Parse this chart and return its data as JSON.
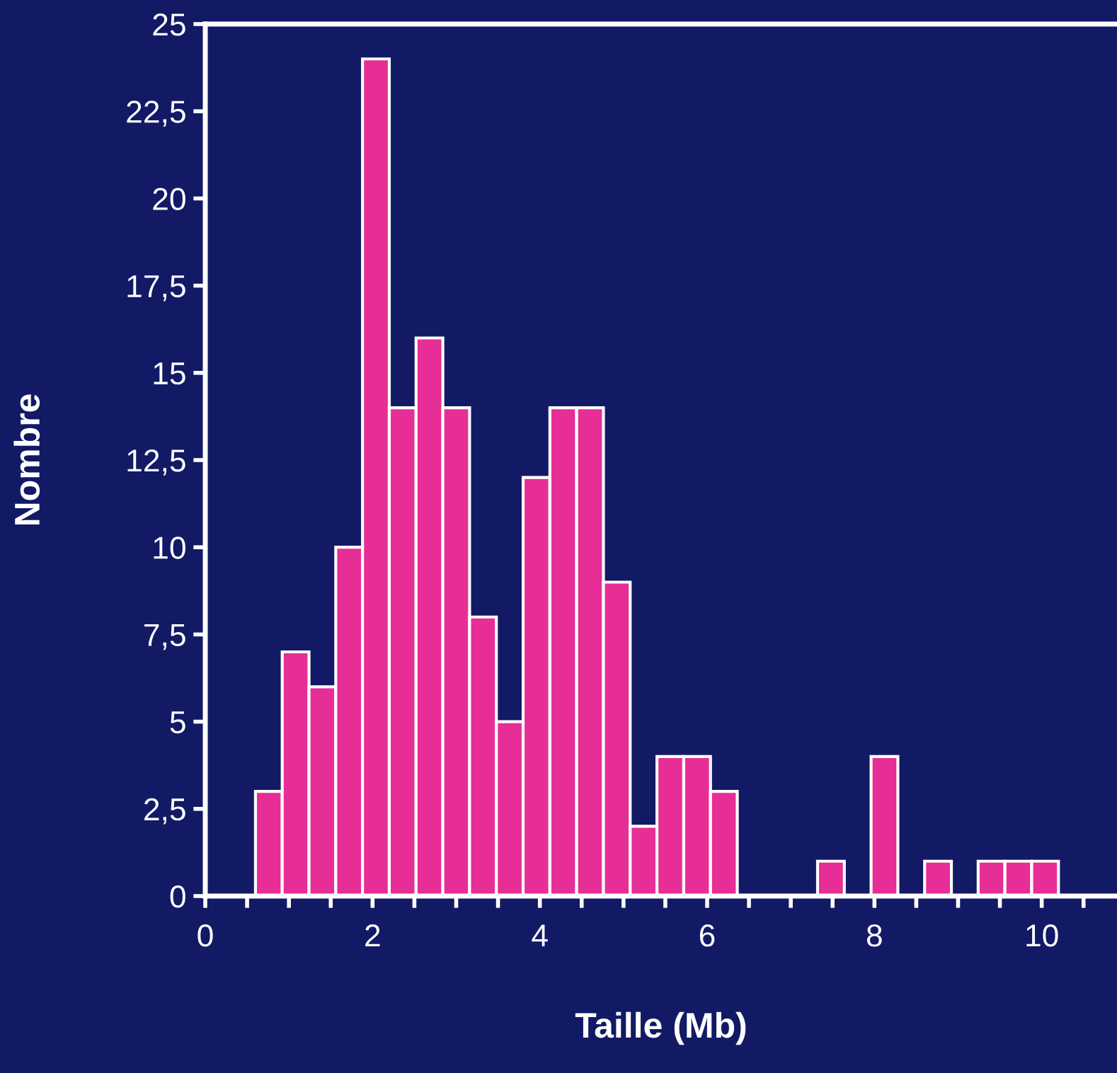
{
  "chart_data": {
    "type": "histogram",
    "xlabel": "Taille (Mb)",
    "ylabel": "Nombre",
    "bins": [
      0.6,
      0.92,
      1.24,
      1.56,
      1.88,
      2.2,
      2.52,
      2.84,
      3.16,
      3.48,
      3.8,
      4.12,
      4.44,
      4.76,
      5.08,
      5.4,
      5.72,
      6.04,
      6.36,
      6.68,
      7.0,
      7.32,
      7.64,
      7.96,
      8.28,
      8.6,
      8.92,
      9.24,
      9.56,
      9.88,
      10.2
    ],
    "values": [
      3,
      7,
      6,
      10,
      24,
      14,
      16,
      14,
      8,
      5,
      12,
      14,
      14,
      9,
      2,
      4,
      4,
      3,
      0,
      0,
      0,
      1,
      0,
      4,
      0,
      1,
      0,
      1,
      1,
      1
    ],
    "color": "#e62e96",
    "xlim": [
      0,
      10.9
    ],
    "xticks": [
      0,
      {
        "value": 0.5,
        "label": null
      },
      {
        "value": 1,
        "label": null
      },
      {
        "value": 1.5,
        "label": null
      },
      2,
      {
        "value": 2.5,
        "label": null
      },
      {
        "value": 3,
        "label": null
      },
      {
        "value": 3.5,
        "label": null
      },
      4,
      {
        "value": 4.5,
        "label": null
      },
      {
        "value": 5,
        "label": null
      },
      {
        "value": 5.5,
        "label": null
      },
      6,
      {
        "value": 6.5,
        "label": null
      },
      {
        "value": 7,
        "label": null
      },
      {
        "value": 7.5,
        "label": null
      },
      8,
      {
        "value": 8.5,
        "label": null
      },
      {
        "value": 9,
        "label": null
      },
      {
        "value": 9.5,
        "label": null
      },
      10,
      {
        "value": 10.5,
        "label": null
      }
    ],
    "ylim": [
      0,
      25
    ],
    "yticks": [
      0,
      {
        "value": 2.5,
        "label": "2,5"
      },
      5,
      {
        "value": 7.5,
        "label": "7,5"
      },
      10,
      {
        "value": 12.5,
        "label": "12,5"
      },
      15,
      {
        "value": 17.5,
        "label": "17,5"
      },
      20,
      {
        "value": 22.5,
        "label": "22,5"
      },
      25
    ],
    "grid": false,
    "legend": false
  }
}
